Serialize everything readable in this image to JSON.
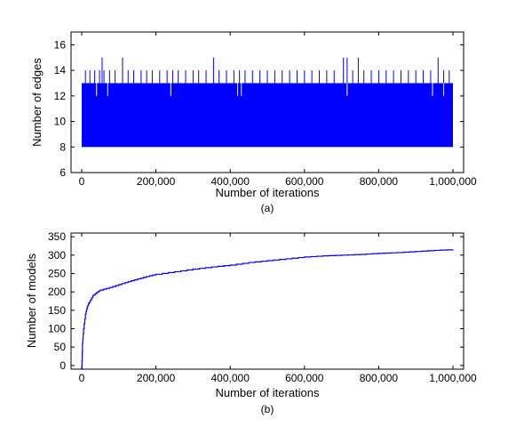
{
  "chart_data": [
    {
      "type": "line",
      "panel_label": "(a)",
      "xlabel": "Number of iterations",
      "ylabel": "Number of edges",
      "xlim": [
        0,
        1000000
      ],
      "ylim": [
        6,
        17
      ],
      "xticks": [
        0,
        200000,
        400000,
        600000,
        800000,
        1000000
      ],
      "xtick_labels": [
        "0",
        "200,000",
        "400,000",
        "600,000",
        "800,000",
        "1,000,000"
      ],
      "yticks": [
        6,
        8,
        10,
        12,
        14,
        16
      ],
      "ytick_labels": [
        "6",
        "8",
        "10",
        "12",
        "14",
        "16"
      ],
      "grid": false,
      "line_color": "#0000ff",
      "band": {
        "min": 8,
        "max": 13
      },
      "spikes": [
        {
          "x": 10000,
          "y": 14
        },
        {
          "x": 22000,
          "y": 14
        },
        {
          "x": 35000,
          "y": 14
        },
        {
          "x": 48000,
          "y": 14
        },
        {
          "x": 55000,
          "y": 15
        },
        {
          "x": 60000,
          "y": 14
        },
        {
          "x": 75000,
          "y": 14
        },
        {
          "x": 90000,
          "y": 14
        },
        {
          "x": 110000,
          "y": 15
        },
        {
          "x": 125000,
          "y": 14
        },
        {
          "x": 140000,
          "y": 14
        },
        {
          "x": 160000,
          "y": 14
        },
        {
          "x": 175000,
          "y": 14
        },
        {
          "x": 190000,
          "y": 14
        },
        {
          "x": 210000,
          "y": 14
        },
        {
          "x": 230000,
          "y": 14
        },
        {
          "x": 245000,
          "y": 14
        },
        {
          "x": 260000,
          "y": 14
        },
        {
          "x": 280000,
          "y": 14
        },
        {
          "x": 300000,
          "y": 14
        },
        {
          "x": 315000,
          "y": 14
        },
        {
          "x": 335000,
          "y": 14
        },
        {
          "x": 355000,
          "y": 15
        },
        {
          "x": 370000,
          "y": 14
        },
        {
          "x": 390000,
          "y": 14
        },
        {
          "x": 410000,
          "y": 14
        },
        {
          "x": 425000,
          "y": 14
        },
        {
          "x": 440000,
          "y": 14
        },
        {
          "x": 460000,
          "y": 14
        },
        {
          "x": 480000,
          "y": 14
        },
        {
          "x": 500000,
          "y": 14
        },
        {
          "x": 520000,
          "y": 14
        },
        {
          "x": 540000,
          "y": 14
        },
        {
          "x": 560000,
          "y": 14
        },
        {
          "x": 580000,
          "y": 14
        },
        {
          "x": 600000,
          "y": 14
        },
        {
          "x": 620000,
          "y": 14
        },
        {
          "x": 640000,
          "y": 14
        },
        {
          "x": 660000,
          "y": 14
        },
        {
          "x": 680000,
          "y": 14
        },
        {
          "x": 705000,
          "y": 15
        },
        {
          "x": 715000,
          "y": 15
        },
        {
          "x": 730000,
          "y": 14
        },
        {
          "x": 745000,
          "y": 15
        },
        {
          "x": 760000,
          "y": 14
        },
        {
          "x": 780000,
          "y": 14
        },
        {
          "x": 800000,
          "y": 14
        },
        {
          "x": 820000,
          "y": 14
        },
        {
          "x": 840000,
          "y": 14
        },
        {
          "x": 860000,
          "y": 14
        },
        {
          "x": 880000,
          "y": 14
        },
        {
          "x": 900000,
          "y": 14
        },
        {
          "x": 920000,
          "y": 14
        },
        {
          "x": 940000,
          "y": 14
        },
        {
          "x": 960000,
          "y": 15
        },
        {
          "x": 975000,
          "y": 14
        },
        {
          "x": 990000,
          "y": 14
        }
      ],
      "dips": [
        {
          "x": 40000,
          "y": 12
        },
        {
          "x": 70000,
          "y": 12
        },
        {
          "x": 240000,
          "y": 12
        },
        {
          "x": 420000,
          "y": 12
        },
        {
          "x": 430000,
          "y": 12
        },
        {
          "x": 715000,
          "y": 12
        },
        {
          "x": 945000,
          "y": 12
        },
        {
          "x": 975000,
          "y": 12
        }
      ]
    },
    {
      "type": "line",
      "panel_label": "(b)",
      "xlabel": "Number of iterations",
      "ylabel": "Number of models",
      "xlim": [
        0,
        1000000
      ],
      "ylim": [
        -10,
        360
      ],
      "xticks": [
        0,
        200000,
        400000,
        600000,
        800000,
        1000000
      ],
      "xtick_labels": [
        "0",
        "200,000",
        "400,000",
        "600,000",
        "800,000",
        "1,000,000"
      ],
      "yticks": [
        0,
        50,
        100,
        150,
        200,
        250,
        300,
        350
      ],
      "ytick_labels": [
        "0",
        "50",
        "100",
        "150",
        "200",
        "250",
        "300",
        "350"
      ],
      "grid": false,
      "line_color": "#0000ff",
      "x": [
        0,
        2000,
        5000,
        10000,
        15000,
        20000,
        30000,
        40000,
        50000,
        75000,
        100000,
        125000,
        150000,
        175000,
        200000,
        250000,
        300000,
        350000,
        400000,
        450000,
        500000,
        550000,
        600000,
        650000,
        700000,
        750000,
        800000,
        850000,
        900000,
        950000,
        1000000
      ],
      "y": [
        -10,
        60,
        100,
        140,
        160,
        172,
        190,
        198,
        205,
        212,
        220,
        228,
        235,
        242,
        248,
        255,
        262,
        268,
        273,
        280,
        285,
        290,
        295,
        298,
        300,
        302,
        305,
        307,
        310,
        313,
        315
      ]
    }
  ]
}
